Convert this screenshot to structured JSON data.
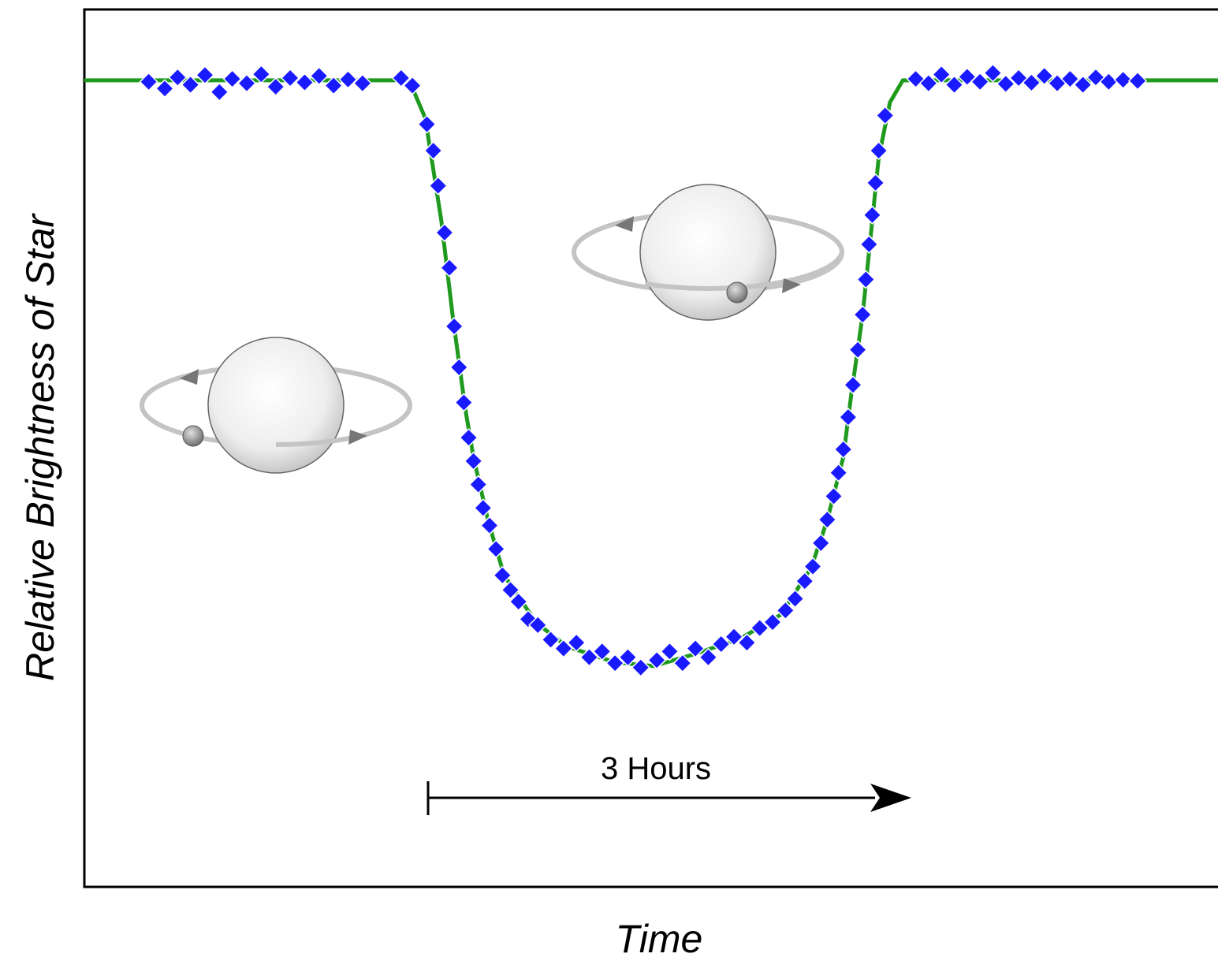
{
  "chart_data": {
    "type": "line",
    "xlabel": "Time",
    "ylabel": "Relative Brightness of Star",
    "annotation": "3 Hours",
    "xlim": [
      0,
      7.05
    ],
    "ylim": [
      0.97246,
      1.00242
    ],
    "grid": false,
    "series": [
      {
        "type": "line",
        "color": "#1f9a1f",
        "x": [
          0.0,
          2.02,
          2.12,
          2.22,
          2.29,
          2.37,
          2.42,
          2.51,
          2.61,
          2.81,
          3.0,
          3.3,
          3.54,
          3.79,
          4.08,
          4.33,
          4.52,
          4.62,
          4.72,
          4.77,
          4.84,
          4.89,
          4.94,
          5.01,
          5.09,
          7.05
        ],
        "values": [
          1.0,
          1.0,
          0.99871,
          0.99521,
          0.99198,
          0.98875,
          0.98713,
          0.98498,
          0.9831,
          0.98148,
          0.98067,
          0.98013,
          0.98,
          0.9804,
          0.98094,
          0.98175,
          0.98336,
          0.98498,
          0.98713,
          0.98929,
          0.99198,
          0.99467,
          0.99736,
          0.99925,
          1.0,
          1.0
        ]
      },
      {
        "type": "scatter",
        "color": "#1a1aff",
        "x": [
          0.4,
          0.5,
          0.58,
          0.66,
          0.75,
          0.84,
          0.92,
          1.01,
          1.1,
          1.19,
          1.28,
          1.37,
          1.46,
          1.55,
          1.64,
          1.73,
          1.97,
          2.04,
          2.13,
          2.17,
          2.2,
          2.24,
          2.27,
          2.3,
          2.33,
          2.36,
          2.39,
          2.42,
          2.45,
          2.48,
          2.52,
          2.56,
          2.6,
          2.65,
          2.7,
          2.76,
          2.82,
          2.9,
          2.98,
          3.06,
          3.14,
          3.22,
          3.3,
          3.38,
          3.46,
          3.56,
          3.64,
          3.72,
          3.8,
          3.88,
          3.96,
          4.04,
          4.12,
          4.2,
          4.28,
          4.36,
          4.42,
          4.48,
          4.53,
          4.58,
          4.62,
          4.66,
          4.69,
          4.72,
          4.75,
          4.78,
          4.81,
          4.84,
          4.86,
          4.88,
          4.9,
          4.92,
          4.94,
          4.98,
          5.17,
          5.25,
          5.33,
          5.41,
          5.49,
          5.57,
          5.65,
          5.73,
          5.81,
          5.89,
          5.97,
          6.05,
          6.13,
          6.21,
          6.29,
          6.37,
          6.46,
          6.55
        ],
        "values": [
          0.99995,
          0.99972,
          1.0001,
          0.99985,
          1.00018,
          0.9996,
          1.00005,
          0.9999,
          1.00021,
          0.99978,
          1.00008,
          0.99993,
          1.00015,
          0.99982,
          1.00003,
          0.9999,
          1.00008,
          0.99982,
          0.9985,
          0.9976,
          0.9964,
          0.9948,
          0.9936,
          0.9916,
          0.9902,
          0.989,
          0.9878,
          0.987,
          0.9862,
          0.9854,
          0.9848,
          0.984,
          0.9831,
          0.9826,
          0.9822,
          0.9816,
          0.9814,
          0.9809,
          0.9806,
          0.9808,
          0.9803,
          0.9805,
          0.9801,
          0.9803,
          0.97995,
          0.9802,
          0.9805,
          0.9801,
          0.9806,
          0.9803,
          0.98075,
          0.981,
          0.9808,
          0.9813,
          0.9815,
          0.9819,
          0.9823,
          0.9829,
          0.9834,
          0.9842,
          0.985,
          0.9858,
          0.9866,
          0.9874,
          0.9885,
          0.9896,
          0.9908,
          0.992,
          0.9932,
          0.9944,
          0.9954,
          0.9965,
          0.9976,
          0.9988,
          1.00005,
          0.9999,
          1.0002,
          0.99985,
          1.00012,
          0.99995,
          1.00025,
          0.99988,
          1.00008,
          0.99992,
          1.00015,
          0.9999,
          1.00005,
          0.99985,
          1.0001,
          0.99995,
          1.00002,
          0.99998
        ]
      }
    ]
  }
}
